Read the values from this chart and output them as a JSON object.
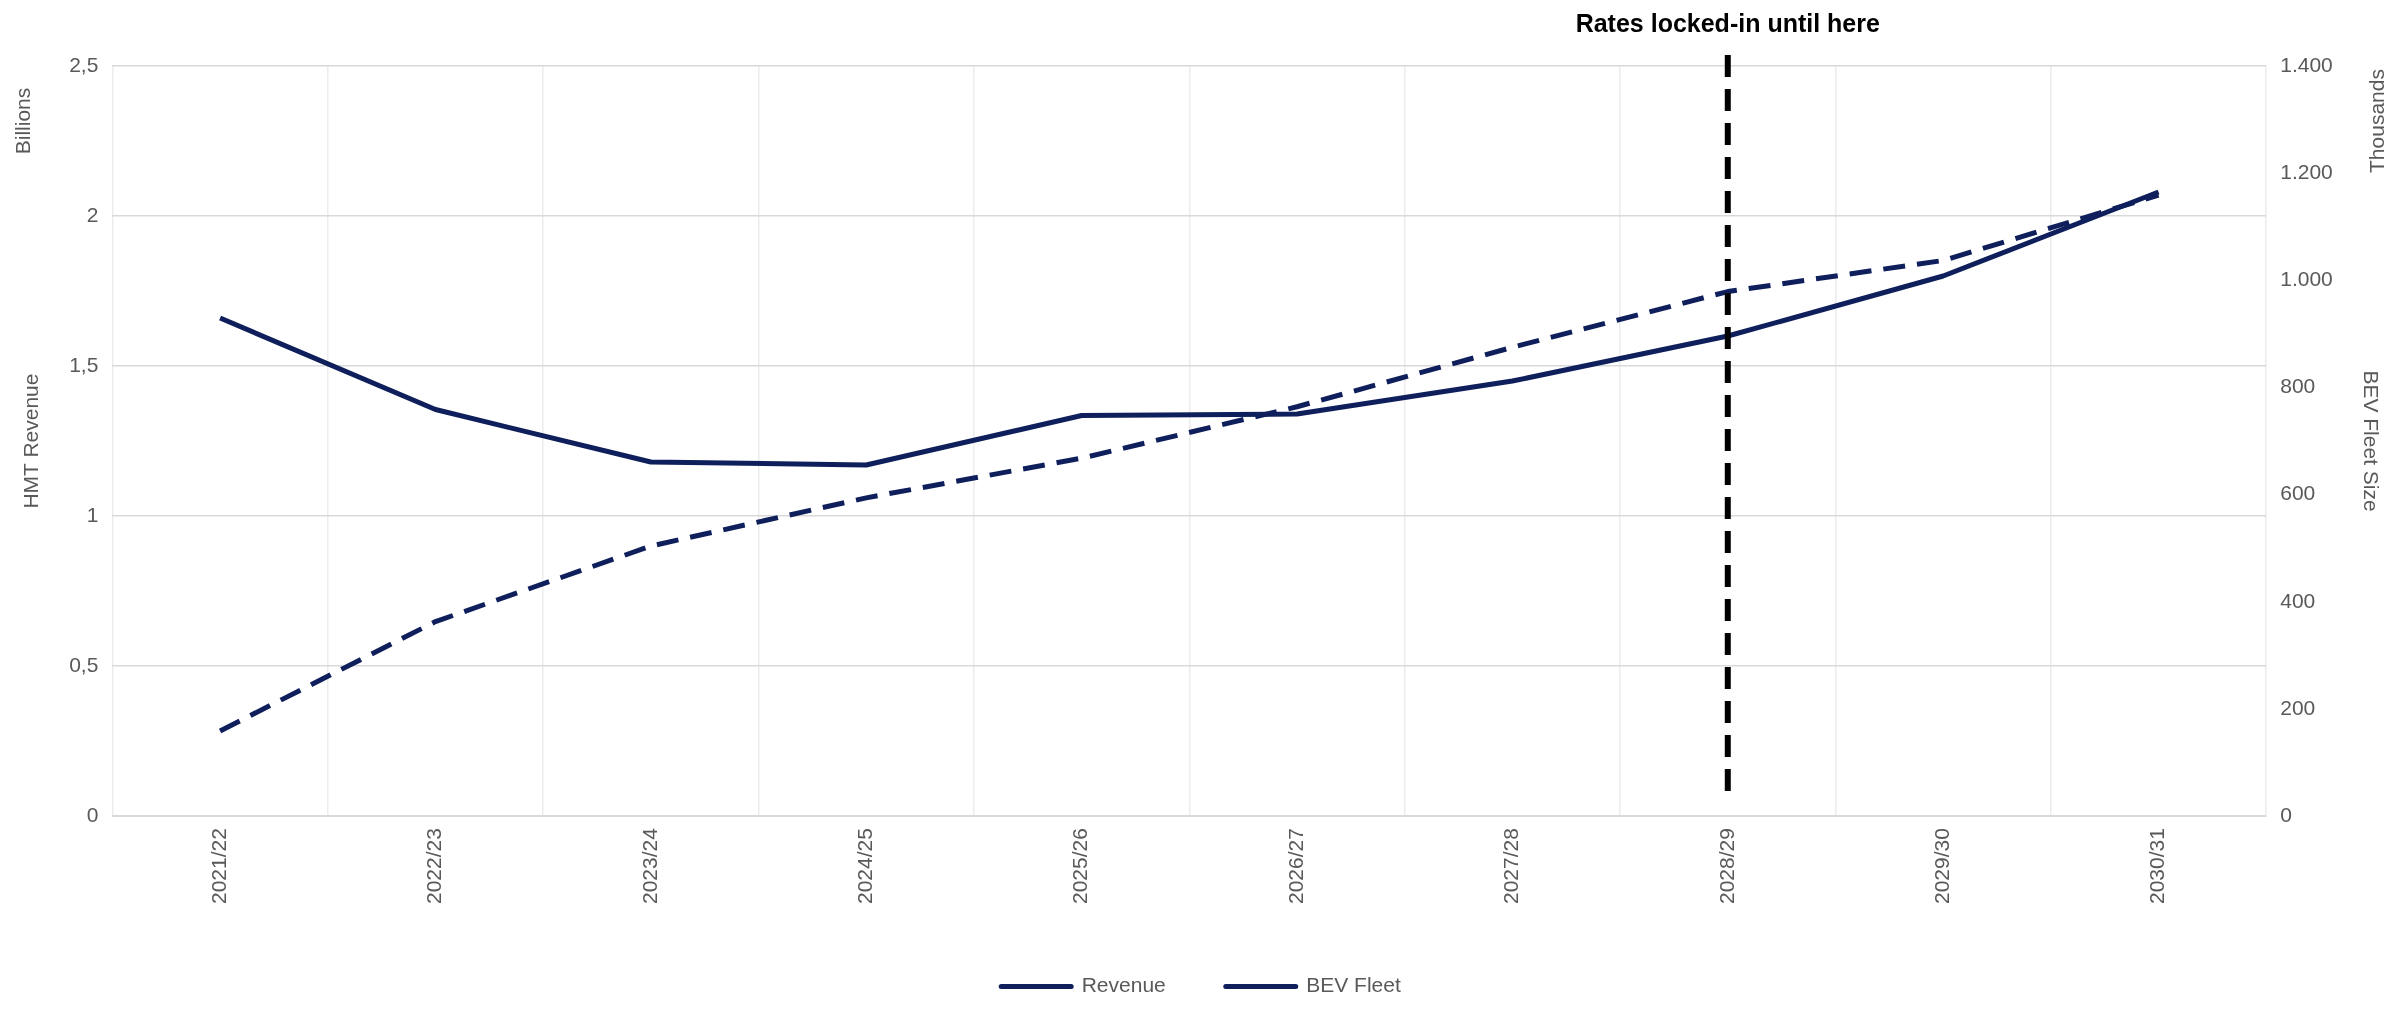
{
  "chart_data": {
    "type": "line",
    "categories": [
      "2021/22",
      "2022/23",
      "2023/24",
      "2024/25",
      "2025/26",
      "2026/27",
      "2027/28",
      "2028/29",
      "2029/30",
      "2030/31"
    ],
    "series": [
      {
        "name": "Revenue",
        "color": "#0e1f5b",
        "line_style": "solid",
        "values": [
          1.66,
          1.355,
          1.18,
          1.17,
          1.335,
          1.34,
          1.45,
          1.6,
          1.8,
          2.08
        ]
      },
      {
        "name": "BEV Fleet",
        "color": "#0e1f5b",
        "line_style": "dashed",
        "axis": "y2",
        "values": [
          159,
          363,
          504,
          594,
          668,
          764,
          875,
          979,
          1037,
          1159
        ]
      }
    ],
    "ylabel": "HMT Revenue",
    "y2label": "BEV Fleet Size",
    "ylim": [
      0,
      2.5
    ],
    "yticks": [
      0,
      {
        "value": 0.5,
        "label": "0,5"
      },
      1,
      {
        "value": 1.5,
        "label": "1,5"
      },
      2,
      {
        "value": 2.5,
        "label": "2,5"
      }
    ],
    "y2lim": [
      0,
      1400
    ],
    "y2ticks": [
      0,
      200,
      400,
      600,
      800,
      {
        "value": 1000,
        "label": "1.000"
      },
      {
        "value": 1200,
        "label": "1.200"
      },
      {
        "value": 1400,
        "label": "1.400"
      }
    ],
    "annotations": [
      "Billions",
      "Thousands"
    ],
    "ref_lines": [
      {
        "axis": "x",
        "value": "2028/29",
        "label": "Rates locked-in until here",
        "color": "#000000",
        "line_style": "dashed"
      }
    ],
    "grid": true,
    "legend": "bottom",
    "marker": "none"
  }
}
